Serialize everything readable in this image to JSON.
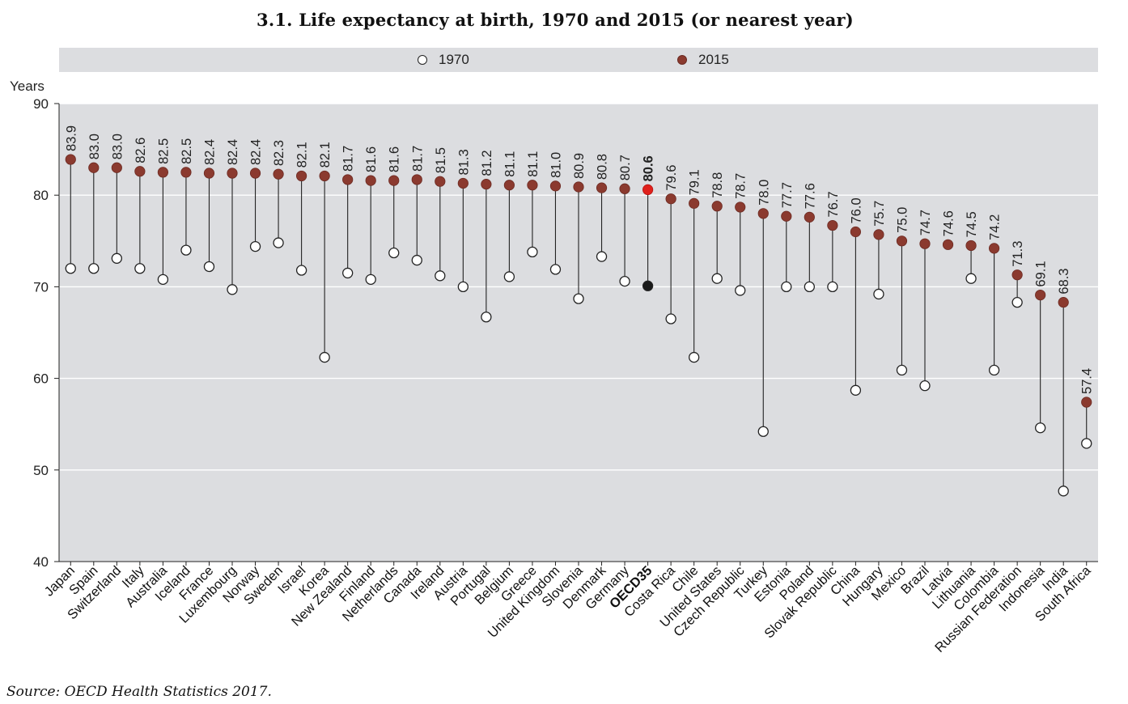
{
  "chart_data": {
    "type": "scatter",
    "title": "3.1. Life expectancy at birth, 1970 and 2015 (or nearest year)",
    "ylabel": "Years",
    "xlabel": "",
    "ylim": [
      40,
      90
    ],
    "yticks": [
      40,
      50,
      60,
      70,
      80,
      90
    ],
    "grid": true,
    "legend": "top",
    "legend_labels": {
      "y1970": "1970",
      "y2015": "2015"
    },
    "colors": {
      "y1970_fill": "#ffffff",
      "y2015_fill": "#8b3a2f",
      "oecd_2015": "#e0201b",
      "oecd_1970": "#1a1a1a",
      "plot_bg": "#dcdde0"
    },
    "highlight": "OECD35",
    "categories": [
      "Japan",
      "Spain",
      "Switzerland",
      "Italy",
      "Australia",
      "Iceland",
      "France",
      "Luxembourg",
      "Norway",
      "Sweden",
      "Israel",
      "Korea",
      "New Zealand",
      "Finland",
      "Netherlands",
      "Canada",
      "Ireland",
      "Austria",
      "Portugal",
      "Belgium",
      "Greece",
      "United Kingdom",
      "Slovenia",
      "Denmark",
      "Germany",
      "OECD35",
      "Costa Rica",
      "Chile",
      "United States",
      "Czech Republic",
      "Turkey",
      "Estonia",
      "Poland",
      "Slovak Republic",
      "China",
      "Hungary",
      "Mexico",
      "Brazil",
      "Latvia",
      "Lithuania",
      "Colombia",
      "Russian Federation",
      "Indonesia",
      "India",
      "South Africa"
    ],
    "series": [
      {
        "name": "1970",
        "values": [
          72.0,
          72.0,
          73.1,
          72.0,
          70.8,
          74.0,
          72.2,
          69.7,
          74.4,
          74.8,
          71.8,
          62.3,
          71.5,
          70.8,
          73.7,
          72.9,
          71.2,
          70.0,
          66.7,
          71.1,
          73.8,
          71.9,
          68.7,
          73.3,
          70.6,
          70.1,
          66.5,
          62.3,
          70.9,
          69.6,
          54.2,
          70.0,
          70.0,
          70.0,
          58.7,
          69.2,
          60.9,
          59.2,
          null,
          70.9,
          60.9,
          68.3,
          54.6,
          47.7,
          52.9
        ]
      },
      {
        "name": "2015",
        "values": [
          83.9,
          83.0,
          83.0,
          82.6,
          82.5,
          82.5,
          82.4,
          82.4,
          82.4,
          82.3,
          82.1,
          82.1,
          81.7,
          81.6,
          81.6,
          81.7,
          81.5,
          81.3,
          81.2,
          81.1,
          81.1,
          81.0,
          80.9,
          80.8,
          80.7,
          80.6,
          79.6,
          79.1,
          78.8,
          78.7,
          78.0,
          77.7,
          77.6,
          76.7,
          76.0,
          75.7,
          75.0,
          74.7,
          74.6,
          74.5,
          74.2,
          71.3,
          69.1,
          68.3,
          57.4
        ]
      }
    ],
    "data_labels": [
      "83.9",
      "83.0",
      "83.0",
      "82.6",
      "82.5",
      "82.5",
      "82.4",
      "82.4",
      "82.4",
      "82.3",
      "82.1",
      "82.1",
      "81.7",
      "81.6",
      "81.6",
      "81.7",
      "81.5",
      "81.3",
      "81.2",
      "81.1",
      "81.1",
      "81.0",
      "80.9",
      "80.8",
      "80.7",
      "80.6",
      "79.6",
      "79.1",
      "78.8",
      "78.7",
      "78.0",
      "77.7",
      "77.6",
      "76.7",
      "76.0",
      "75.7",
      "75.0",
      "74.7",
      "74.6",
      "74.5",
      "74.2",
      "71.3",
      "69.1",
      "68.3",
      "57.4"
    ]
  },
  "source": "Source: OECD Health Statistics 2017."
}
